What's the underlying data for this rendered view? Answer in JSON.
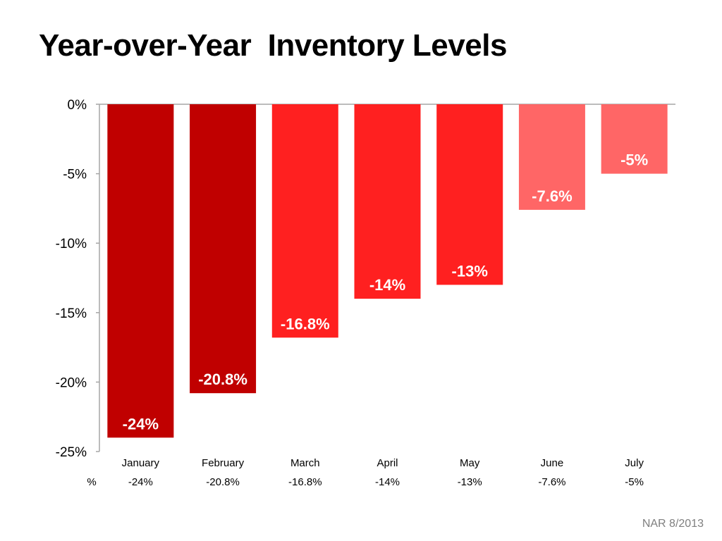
{
  "page": {
    "title": "Year-over-Year  Inventory Levels",
    "source": "NAR 8/2013"
  },
  "chart_data": {
    "type": "bar",
    "title": "Year-over-Year  Inventory Levels",
    "categories": [
      "January",
      "February",
      "March",
      "April",
      "May",
      "June",
      "July"
    ],
    "series": [
      {
        "name": "%",
        "values": [
          -24,
          -20.8,
          -16.8,
          -14,
          -13,
          -7.6,
          -5
        ]
      }
    ],
    "data_labels": [
      "-24%",
      "-20.8%",
      "-16.8%",
      "-14%",
      "-13%",
      "-7.6%",
      "-5%"
    ],
    "bar_colors": [
      "#c00000",
      "#c00000",
      "#ff2020",
      "#ff2020",
      "#ff2020",
      "#ff6666",
      "#ff6666"
    ],
    "ylim": [
      -25,
      0
    ],
    "y_ticks": [
      0,
      -5,
      -10,
      -15,
      -20,
      -25
    ],
    "y_tick_labels": [
      "0%",
      "-5%",
      "-10%",
      "-15%",
      "-20%",
      "-25%"
    ],
    "data_table": {
      "row_label": "%",
      "cells": [
        "-24%",
        "-20.8%",
        "-16.8%",
        "-14%",
        "-13%",
        "-7.6%",
        "-5%"
      ]
    },
    "grid": false,
    "legend": "none"
  }
}
